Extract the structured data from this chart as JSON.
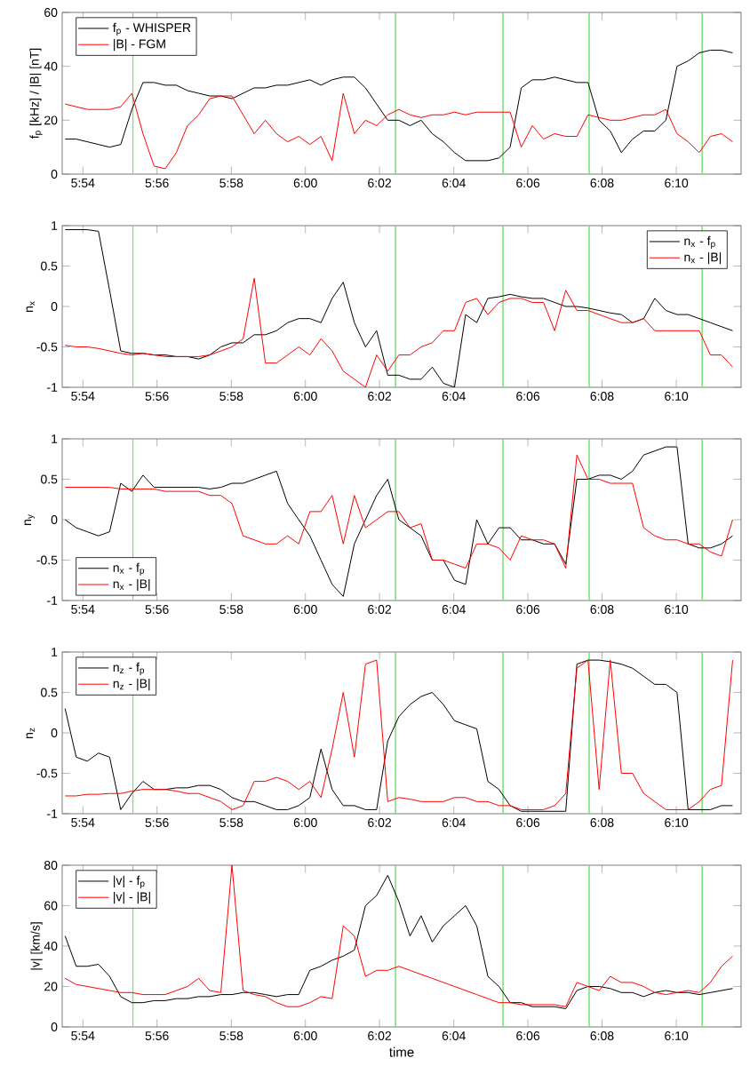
{
  "chart_data": [
    {
      "type": "line",
      "ylabel": "f$_{p}$ [kHz] / |B| [nT]",
      "legend": "top left",
      "x": [
        5.892,
        5.897,
        5.902,
        5.907,
        5.912,
        5.917,
        5.922,
        5.927,
        5.932,
        5.937,
        5.942,
        5.947,
        5.952,
        5.957,
        5.962,
        5.967,
        5.972,
        5.977,
        5.982,
        5.987,
        5.992,
        5.997,
        6.002,
        6.007,
        6.012,
        6.017,
        6.022,
        6.027,
        6.032,
        6.037,
        6.042,
        6.047,
        6.052,
        6.057,
        6.062,
        6.067,
        6.072,
        6.077,
        6.082,
        6.087,
        6.092,
        6.097,
        6.102,
        6.107,
        6.112,
        6.117,
        6.122,
        6.127,
        6.132,
        6.137,
        6.142,
        6.147,
        6.152,
        6.157,
        6.162,
        6.167,
        6.172,
        6.177,
        6.182,
        6.187,
        6.192
      ],
      "xlim": [
        5.8907,
        6.1958
      ],
      "xticks": [
        {
          "value": 5.9,
          "label": "5:54"
        },
        {
          "value": 5.9333,
          "label": "5:56"
        },
        {
          "value": 5.9667,
          "label": "5:58"
        },
        {
          "value": 6.0,
          "label": "6:00"
        },
        {
          "value": 6.0333,
          "label": "6:02"
        },
        {
          "value": 6.0667,
          "label": "6:04"
        },
        {
          "value": 6.1,
          "label": "6:06"
        },
        {
          "value": 6.1333,
          "label": "6:08"
        },
        {
          "value": 6.1667,
          "label": "6:10"
        }
      ],
      "ylim": [
        0,
        60
      ],
      "yticks": [
        0,
        20,
        40,
        60
      ],
      "ref_lines": [
        {
          "axis": "x",
          "value": 5.9225,
          "color": "#80e080"
        },
        {
          "axis": "x",
          "value": 6.0405,
          "color": "#80e080"
        },
        {
          "axis": "x",
          "value": 6.0888,
          "color": "#80e080"
        },
        {
          "axis": "x",
          "value": 6.1275,
          "color": "#80e080"
        },
        {
          "axis": "x",
          "value": 6.1783,
          "color": "#80e080"
        }
      ],
      "series": [
        {
          "name": "f$_{p}$ - WHISPER",
          "color": "#000000",
          "values": [
            13,
            13,
            12,
            11,
            10,
            11,
            24,
            34,
            34,
            33,
            33,
            31,
            30,
            29,
            29,
            28,
            30,
            32,
            32,
            33,
            33,
            34,
            35,
            33,
            35,
            36,
            36,
            32,
            26,
            20,
            20,
            18,
            20,
            15,
            12,
            8,
            5,
            5,
            5,
            6,
            10,
            32,
            35,
            35,
            36,
            35,
            34,
            34,
            20,
            16,
            8,
            13,
            16,
            16,
            20,
            40,
            42,
            45,
            46,
            46,
            45
          ]
        },
        {
          "name": "|B| - FGM",
          "color": "#ff0000",
          "values": [
            26,
            25,
            24,
            24,
            24,
            25,
            30,
            15,
            3,
            2,
            8,
            18,
            22,
            28,
            29,
            29,
            22,
            15,
            20,
            15,
            12,
            14,
            11,
            14,
            5,
            30,
            15,
            20,
            18,
            22,
            24,
            22,
            21,
            22,
            22,
            23,
            22,
            23,
            23,
            23,
            23,
            10,
            18,
            13,
            15,
            14,
            14,
            22,
            21,
            20,
            20,
            21,
            22,
            22,
            24,
            15,
            12,
            8,
            14,
            15,
            12
          ]
        }
      ]
    },
    {
      "type": "line",
      "ylabel": "n$_{x}$",
      "legend": "top right",
      "x": [
        5.892,
        5.897,
        5.902,
        5.907,
        5.912,
        5.917,
        5.922,
        5.927,
        5.932,
        5.937,
        5.942,
        5.947,
        5.952,
        5.957,
        5.962,
        5.967,
        5.972,
        5.977,
        5.982,
        5.987,
        5.992,
        5.997,
        6.002,
        6.007,
        6.012,
        6.017,
        6.022,
        6.027,
        6.032,
        6.037,
        6.042,
        6.047,
        6.052,
        6.057,
        6.062,
        6.067,
        6.072,
        6.077,
        6.082,
        6.087,
        6.092,
        6.097,
        6.102,
        6.107,
        6.112,
        6.117,
        6.122,
        6.127,
        6.132,
        6.137,
        6.142,
        6.147,
        6.152,
        6.157,
        6.162,
        6.167,
        6.172,
        6.177,
        6.182,
        6.187,
        6.192
      ],
      "xlim": [
        5.8907,
        6.1958
      ],
      "xticks": [
        {
          "value": 5.9,
          "label": "5:54"
        },
        {
          "value": 5.9333,
          "label": "5:56"
        },
        {
          "value": 5.9667,
          "label": "5:58"
        },
        {
          "value": 6.0,
          "label": "6:00"
        },
        {
          "value": 6.0333,
          "label": "6:02"
        },
        {
          "value": 6.0667,
          "label": "6:04"
        },
        {
          "value": 6.1,
          "label": "6:06"
        },
        {
          "value": 6.1333,
          "label": "6:08"
        },
        {
          "value": 6.1667,
          "label": "6:10"
        }
      ],
      "ylim": [
        -1,
        1
      ],
      "yticks": [
        -1,
        -0.5,
        0,
        0.5,
        1
      ],
      "ref_lines": [
        {
          "axis": "x",
          "value": 5.9225,
          "color": "#80e080"
        },
        {
          "axis": "x",
          "value": 6.0405,
          "color": "#80e080"
        },
        {
          "axis": "x",
          "value": 6.0888,
          "color": "#80e080"
        },
        {
          "axis": "x",
          "value": 6.1275,
          "color": "#80e080"
        },
        {
          "axis": "x",
          "value": 6.1783,
          "color": "#80e080"
        }
      ],
      "series": [
        {
          "name": "n$_{x}$ - f$_{p}$",
          "color": "#000000",
          "values": [
            0.95,
            0.95,
            0.95,
            0.93,
            0.2,
            -0.55,
            -0.58,
            -0.58,
            -0.6,
            -0.6,
            -0.62,
            -0.62,
            -0.65,
            -0.6,
            -0.5,
            -0.45,
            -0.45,
            -0.35,
            -0.35,
            -0.3,
            -0.2,
            -0.15,
            -0.15,
            -0.2,
            0.1,
            0.3,
            -0.2,
            -0.5,
            -0.3,
            -0.85,
            -0.85,
            -0.9,
            -0.9,
            -0.75,
            -0.95,
            -1,
            -0.1,
            -0.2,
            0.1,
            0.12,
            0.15,
            0.12,
            0.1,
            0.1,
            0.05,
            0,
            0,
            -0.02,
            -0.05,
            -0.08,
            -0.1,
            -0.2,
            -0.15,
            0.1,
            -0.05,
            -0.1,
            -0.1,
            -0.15,
            -0.2,
            -0.25,
            -0.3
          ]
        },
        {
          "name": "n$_{x}$ - |B|",
          "color": "#ff0000",
          "values": [
            -0.48,
            -0.5,
            -0.5,
            -0.52,
            -0.55,
            -0.58,
            -0.6,
            -0.58,
            -0.6,
            -0.62,
            -0.62,
            -0.62,
            -0.62,
            -0.6,
            -0.55,
            -0.5,
            -0.4,
            0.35,
            -0.7,
            -0.7,
            -0.6,
            -0.5,
            -0.6,
            -0.4,
            -0.55,
            -0.8,
            -0.9,
            -1,
            -0.6,
            -0.8,
            -0.6,
            -0.6,
            -0.5,
            -0.45,
            -0.3,
            -0.3,
            0.05,
            0.1,
            -0.1,
            0.05,
            0.1,
            0.1,
            0.05,
            0.05,
            -0.3,
            0.2,
            -0.05,
            -0.05,
            -0.1,
            -0.15,
            -0.2,
            -0.2,
            -0.15,
            -0.3,
            -0.3,
            -0.3,
            -0.3,
            -0.3,
            -0.6,
            -0.6,
            -0.75
          ]
        }
      ]
    },
    {
      "type": "line",
      "ylabel": "n$_{y}$",
      "legend": "bottom left",
      "x": [
        5.892,
        5.897,
        5.902,
        5.907,
        5.912,
        5.917,
        5.922,
        5.927,
        5.932,
        5.937,
        5.942,
        5.947,
        5.952,
        5.957,
        5.962,
        5.967,
        5.972,
        5.977,
        5.982,
        5.987,
        5.992,
        5.997,
        6.002,
        6.007,
        6.012,
        6.017,
        6.022,
        6.027,
        6.032,
        6.037,
        6.042,
        6.047,
        6.052,
        6.057,
        6.062,
        6.067,
        6.072,
        6.077,
        6.082,
        6.087,
        6.092,
        6.097,
        6.102,
        6.107,
        6.112,
        6.117,
        6.122,
        6.127,
        6.132,
        6.137,
        6.142,
        6.147,
        6.152,
        6.157,
        6.162,
        6.167,
        6.172,
        6.177,
        6.182,
        6.187,
        6.192
      ],
      "xlim": [
        5.8907,
        6.1958
      ],
      "xticks": [
        {
          "value": 5.9,
          "label": "5:54"
        },
        {
          "value": 5.9333,
          "label": "5:56"
        },
        {
          "value": 5.9667,
          "label": "5:58"
        },
        {
          "value": 6.0,
          "label": "6:00"
        },
        {
          "value": 6.0333,
          "label": "6:02"
        },
        {
          "value": 6.0667,
          "label": "6:04"
        },
        {
          "value": 6.1,
          "label": "6:06"
        },
        {
          "value": 6.1333,
          "label": "6:08"
        },
        {
          "value": 6.1667,
          "label": "6:10"
        }
      ],
      "ylim": [
        -1,
        1
      ],
      "yticks": [
        -1,
        -0.5,
        0,
        0.5,
        1
      ],
      "ref_lines": [
        {
          "axis": "x",
          "value": 5.9225,
          "color": "#80e080"
        },
        {
          "axis": "x",
          "value": 6.0405,
          "color": "#80e080"
        },
        {
          "axis": "x",
          "value": 6.0888,
          "color": "#80e080"
        },
        {
          "axis": "x",
          "value": 6.1275,
          "color": "#80e080"
        },
        {
          "axis": "x",
          "value": 6.1783,
          "color": "#80e080"
        }
      ],
      "series": [
        {
          "name": "n$_{x}$ - f$_{p}$",
          "color": "#000000",
          "values": [
            0,
            -0.1,
            -0.15,
            -0.2,
            -0.15,
            0.45,
            0.35,
            0.55,
            0.4,
            0.4,
            0.4,
            0.4,
            0.4,
            0.38,
            0.4,
            0.45,
            0.45,
            0.5,
            0.55,
            0.6,
            0.2,
            0,
            -0.2,
            -0.5,
            -0.8,
            -0.95,
            -0.3,
            0,
            0.3,
            0.5,
            0,
            -0.1,
            -0.2,
            -0.5,
            -0.5,
            -0.75,
            -0.8,
            0,
            -0.3,
            -0.1,
            -0.1,
            -0.25,
            -0.25,
            -0.3,
            -0.3,
            -0.55,
            0.5,
            0.5,
            0.55,
            0.55,
            0.5,
            0.6,
            0.8,
            0.85,
            0.9,
            0.9,
            -0.3,
            -0.35,
            -0.35,
            -0.3,
            -0.2
          ]
        },
        {
          "name": "n$_{x}$ - |B|",
          "color": "#ff0000",
          "values": [
            0.4,
            0.4,
            0.4,
            0.4,
            0.4,
            0.38,
            0.38,
            0.38,
            0.38,
            0.35,
            0.35,
            0.35,
            0.35,
            0.3,
            0.3,
            0.2,
            -0.2,
            -0.25,
            -0.3,
            -0.3,
            -0.2,
            -0.3,
            0.1,
            0.1,
            0.3,
            -0.3,
            0.3,
            -0.1,
            0,
            0.1,
            0.1,
            -0.1,
            -0.05,
            -0.5,
            -0.5,
            -0.55,
            -0.6,
            -0.3,
            -0.3,
            -0.35,
            -0.5,
            -0.2,
            -0.25,
            -0.25,
            -0.3,
            -0.6,
            0.8,
            0.5,
            0.5,
            0.45,
            0.45,
            0.45,
            -0.1,
            -0.2,
            -0.25,
            -0.25,
            -0.3,
            -0.3,
            -0.4,
            -0.45,
            0
          ]
        }
      ]
    },
    {
      "type": "line",
      "ylabel": "n$_{z}$",
      "legend": "top left",
      "x": [
        5.892,
        5.897,
        5.902,
        5.907,
        5.912,
        5.917,
        5.922,
        5.927,
        5.932,
        5.937,
        5.942,
        5.947,
        5.952,
        5.957,
        5.962,
        5.967,
        5.972,
        5.977,
        5.982,
        5.987,
        5.992,
        5.997,
        6.002,
        6.007,
        6.012,
        6.017,
        6.022,
        6.027,
        6.032,
        6.037,
        6.042,
        6.047,
        6.052,
        6.057,
        6.062,
        6.067,
        6.072,
        6.077,
        6.082,
        6.087,
        6.092,
        6.097,
        6.102,
        6.107,
        6.112,
        6.117,
        6.122,
        6.127,
        6.132,
        6.137,
        6.142,
        6.147,
        6.152,
        6.157,
        6.162,
        6.167,
        6.172,
        6.177,
        6.182,
        6.187,
        6.192
      ],
      "xlim": [
        5.8907,
        6.1958
      ],
      "xticks": [
        {
          "value": 5.9,
          "label": "5:54"
        },
        {
          "value": 5.9333,
          "label": "5:56"
        },
        {
          "value": 5.9667,
          "label": "5:58"
        },
        {
          "value": 6.0,
          "label": "6:00"
        },
        {
          "value": 6.0333,
          "label": "6:02"
        },
        {
          "value": 6.0667,
          "label": "6:04"
        },
        {
          "value": 6.1,
          "label": "6:06"
        },
        {
          "value": 6.1333,
          "label": "6:08"
        },
        {
          "value": 6.1667,
          "label": "6:10"
        }
      ],
      "ylim": [
        -1,
        1
      ],
      "yticks": [
        -1,
        -0.5,
        0,
        0.5,
        1
      ],
      "ref_lines": [
        {
          "axis": "x",
          "value": 5.9225,
          "color": "#80e080"
        },
        {
          "axis": "x",
          "value": 6.0405,
          "color": "#80e080"
        },
        {
          "axis": "x",
          "value": 6.0888,
          "color": "#80e080"
        },
        {
          "axis": "x",
          "value": 6.1275,
          "color": "#80e080"
        },
        {
          "axis": "x",
          "value": 6.1783,
          "color": "#80e080"
        }
      ],
      "series": [
        {
          "name": "n$_{z}$ - f$_{p}$",
          "color": "#000000",
          "values": [
            0.3,
            -0.3,
            -0.35,
            -0.25,
            -0.3,
            -0.95,
            -0.75,
            -0.6,
            -0.7,
            -0.7,
            -0.68,
            -0.68,
            -0.65,
            -0.65,
            -0.7,
            -0.8,
            -0.85,
            -0.85,
            -0.9,
            -0.95,
            -0.95,
            -0.9,
            -0.8,
            -0.2,
            -0.7,
            -0.9,
            -0.9,
            -0.95,
            -0.95,
            -0.1,
            0.2,
            0.35,
            0.45,
            0.5,
            0.35,
            0.15,
            0.1,
            0.05,
            -0.6,
            -0.7,
            -0.9,
            -0.97,
            -0.97,
            -0.97,
            -0.97,
            -0.97,
            0.85,
            0.9,
            0.9,
            0.88,
            0.85,
            0.8,
            0.7,
            0.6,
            0.6,
            0.5,
            -0.95,
            -0.95,
            -0.95,
            -0.9,
            -0.9
          ]
        },
        {
          "name": "n$_{z}$ - |B|",
          "color": "#ff0000",
          "values": [
            -0.78,
            -0.78,
            -0.76,
            -0.76,
            -0.75,
            -0.75,
            -0.72,
            -0.7,
            -0.7,
            -0.7,
            -0.72,
            -0.75,
            -0.75,
            -0.8,
            -0.85,
            -0.95,
            -0.9,
            -0.6,
            -0.6,
            -0.55,
            -0.6,
            -0.7,
            -0.6,
            -0.8,
            -0.2,
            0.5,
            -0.3,
            0.85,
            0.9,
            -0.85,
            -0.8,
            -0.82,
            -0.85,
            -0.85,
            -0.85,
            -0.8,
            -0.8,
            -0.85,
            -0.85,
            -0.9,
            -0.9,
            -0.95,
            -0.95,
            -0.95,
            -0.9,
            -0.75,
            0.8,
            0.9,
            -0.7,
            0.9,
            -0.5,
            -0.5,
            -0.75,
            -0.85,
            -0.95,
            -0.95,
            -0.95,
            -0.85,
            -0.7,
            -0.65,
            0.9
          ]
        }
      ]
    },
    {
      "type": "line",
      "ylabel": "|v| [km/s]",
      "xlabel": "time",
      "legend": "top left",
      "x": [
        5.892,
        5.897,
        5.902,
        5.907,
        5.912,
        5.917,
        5.922,
        5.927,
        5.932,
        5.937,
        5.942,
        5.947,
        5.952,
        5.957,
        5.962,
        5.967,
        5.972,
        5.977,
        5.982,
        5.987,
        5.992,
        5.997,
        6.002,
        6.007,
        6.012,
        6.017,
        6.022,
        6.027,
        6.032,
        6.037,
        6.042,
        6.047,
        6.052,
        6.057,
        6.062,
        6.067,
        6.072,
        6.077,
        6.082,
        6.087,
        6.092,
        6.097,
        6.102,
        6.107,
        6.112,
        6.117,
        6.122,
        6.127,
        6.132,
        6.137,
        6.142,
        6.147,
        6.152,
        6.157,
        6.162,
        6.167,
        6.172,
        6.177,
        6.182,
        6.187,
        6.192
      ],
      "xlim": [
        5.8907,
        6.1958
      ],
      "xticks": [
        {
          "value": 5.9,
          "label": "5:54"
        },
        {
          "value": 5.9333,
          "label": "5:56"
        },
        {
          "value": 5.9667,
          "label": "5:58"
        },
        {
          "value": 6.0,
          "label": "6:00"
        },
        {
          "value": 6.0333,
          "label": "6:02"
        },
        {
          "value": 6.0667,
          "label": "6:04"
        },
        {
          "value": 6.1,
          "label": "6:06"
        },
        {
          "value": 6.1333,
          "label": "6:08"
        },
        {
          "value": 6.1667,
          "label": "6:10"
        }
      ],
      "ylim": [
        0,
        80
      ],
      "yticks": [
        0,
        20,
        40,
        60,
        80
      ],
      "ref_lines": [
        {
          "axis": "x",
          "value": 5.9225,
          "color": "#80e080"
        },
        {
          "axis": "x",
          "value": 6.0405,
          "color": "#80e080"
        },
        {
          "axis": "x",
          "value": 6.0888,
          "color": "#80e080"
        },
        {
          "axis": "x",
          "value": 6.1275,
          "color": "#80e080"
        },
        {
          "axis": "x",
          "value": 6.1783,
          "color": "#80e080"
        }
      ],
      "series": [
        {
          "name": "|v| - f$_{p}$",
          "color": "#000000",
          "values": [
            45,
            30,
            30,
            31,
            25,
            15,
            12,
            12,
            13,
            13,
            14,
            14,
            15,
            15,
            16,
            16,
            17,
            17,
            16,
            15,
            16,
            16,
            28,
            30,
            33,
            35,
            38,
            60,
            65,
            75,
            62,
            45,
            55,
            42,
            50,
            55,
            60,
            50,
            25,
            20,
            12,
            12,
            10,
            10,
            10,
            9,
            18,
            20,
            20,
            19,
            17,
            17,
            15,
            17,
            18,
            17,
            17,
            16,
            17,
            18,
            19
          ]
        },
        {
          "name": "|v| - |B|",
          "color": "#ff0000",
          "values": [
            24,
            21,
            20,
            19,
            18,
            17,
            17,
            16,
            16,
            16,
            18,
            20,
            24,
            18,
            17,
            80,
            18,
            16,
            15,
            12,
            10,
            10,
            12,
            15,
            14,
            50,
            45,
            25,
            28,
            28,
            30,
            28,
            26,
            24,
            22,
            20,
            18,
            16,
            14,
            12,
            12,
            11,
            11,
            11,
            11,
            10,
            22,
            20,
            18,
            25,
            22,
            22,
            20,
            17,
            16,
            17,
            18,
            17,
            22,
            30,
            35
          ]
        }
      ]
    }
  ]
}
